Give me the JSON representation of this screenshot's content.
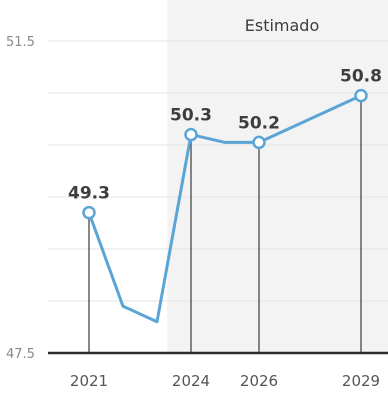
{
  "chart_data": {
    "type": "line",
    "title": "",
    "xlabel": "",
    "ylabel": "",
    "ylim": [
      47.5,
      51.5
    ],
    "xlim": [
      2021,
      2029
    ],
    "y_ticks": [
      47.5,
      51.5
    ],
    "x_ticks": [
      2021,
      2024,
      2026,
      2029
    ],
    "grid": true,
    "forecast": {
      "label": "Estimado",
      "from_x": 2023.3
    },
    "series": [
      {
        "color": "#5aa5d6",
        "x": [
          2021,
          2022,
          2023,
          2024,
          2025,
          2026,
          2029
        ],
        "y": [
          49.3,
          48.1,
          47.9,
          50.3,
          50.2,
          50.2,
          50.8
        ]
      }
    ],
    "labeled_points": [
      {
        "x": 2021,
        "y": 49.3,
        "label": "49.3"
      },
      {
        "x": 2024,
        "y": 50.3,
        "label": "50.3"
      },
      {
        "x": 2026,
        "y": 50.2,
        "label": "50.2"
      },
      {
        "x": 2029,
        "y": 50.8,
        "label": "50.8"
      }
    ]
  }
}
